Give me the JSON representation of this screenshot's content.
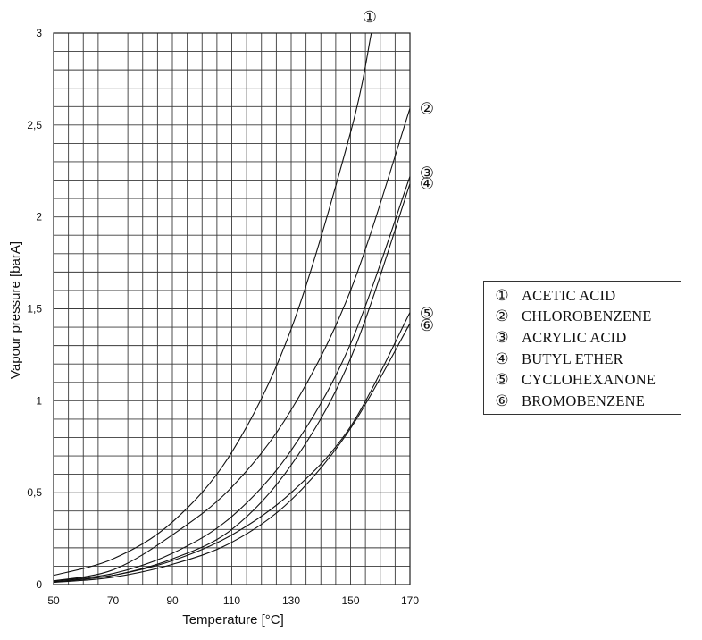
{
  "chart_data": {
    "type": "line",
    "xlabel": "Temperature [°C]",
    "ylabel": "Vapour pressure [barA]",
    "xlim": [
      50,
      170
    ],
    "ylim": [
      0,
      3
    ],
    "x_ticks": [
      "50",
      "70",
      "90",
      "110",
      "130",
      "150",
      "170"
    ],
    "y_ticks": [
      "0",
      "0,5",
      "1",
      "1,5",
      "2",
      "2,5",
      "3"
    ],
    "x_minor_step": 5,
    "y_minor_step": 0.1,
    "grid": true,
    "legend_placement": "right",
    "series": [
      {
        "name": "ACETIC ACID",
        "marker": "①",
        "x": [
          50,
          70,
          90,
          110,
          130,
          150,
          157
        ],
        "y": [
          0.05,
          0.14,
          0.34,
          0.72,
          1.39,
          2.46,
          3.0
        ]
      },
      {
        "name": "CHLOROBENZENE",
        "marker": "②",
        "x": [
          50,
          70,
          90,
          110,
          130,
          150,
          170
        ],
        "y": [
          0.02,
          0.08,
          0.27,
          0.53,
          0.95,
          1.6,
          2.59
        ]
      },
      {
        "name": "ACRYLIC ACID",
        "marker": "③",
        "x": [
          50,
          70,
          90,
          110,
          130,
          150,
          170
        ],
        "y": [
          0.02,
          0.06,
          0.17,
          0.37,
          0.73,
          1.31,
          2.22
        ]
      },
      {
        "name": "BUTYL ETHER",
        "marker": "④",
        "x": [
          50,
          70,
          90,
          110,
          130,
          150,
          170
        ],
        "y": [
          0.015,
          0.05,
          0.14,
          0.3,
          0.65,
          1.23,
          2.18
        ]
      },
      {
        "name": "CYCLOHEXANONE",
        "marker": "⑤",
        "x": [
          50,
          70,
          90,
          110,
          130,
          150,
          170
        ],
        "y": [
          0.015,
          0.05,
          0.13,
          0.27,
          0.5,
          0.86,
          1.48
        ]
      },
      {
        "name": "BROMOBENZENE",
        "marker": "⑥",
        "x": [
          50,
          70,
          90,
          110,
          130,
          150,
          170
        ],
        "y": [
          0.012,
          0.04,
          0.11,
          0.23,
          0.46,
          0.85,
          1.42
        ]
      }
    ]
  }
}
